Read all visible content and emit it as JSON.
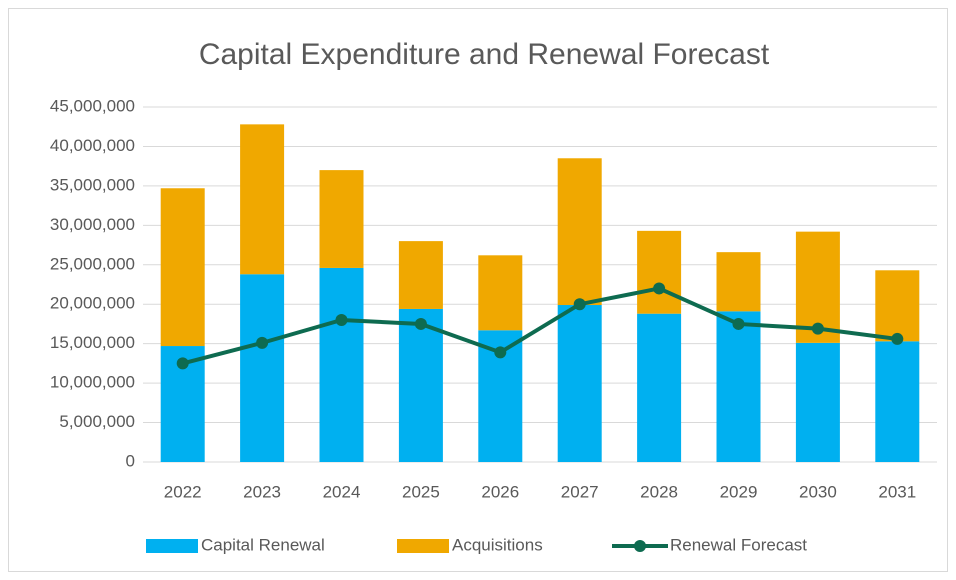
{
  "chart_data": {
    "type": "bar",
    "title": "Capital Expenditure and Renewal Forecast",
    "categories": [
      "2022",
      "2023",
      "2024",
      "2025",
      "2026",
      "2027",
      "2028",
      "2029",
      "2030",
      "2031"
    ],
    "stacked": true,
    "series": [
      {
        "name": "Capital Renewal",
        "type": "bar",
        "color": "#00b0f0",
        "values": [
          14700000,
          23800000,
          24600000,
          19400000,
          16700000,
          19900000,
          18800000,
          19100000,
          15100000,
          15300000
        ]
      },
      {
        "name": "Acquisitions",
        "type": "bar",
        "color": "#f0a800",
        "values": [
          20000000,
          19000000,
          12400000,
          8600000,
          9500000,
          18600000,
          10500000,
          7500000,
          14100000,
          9000000
        ]
      },
      {
        "name": "Renewal Forecast",
        "type": "line",
        "color": "#0e6b50",
        "values": [
          12500000,
          15100000,
          18000000,
          17500000,
          13900000,
          20000000,
          22000000,
          17500000,
          16900000,
          15600000
        ]
      }
    ],
    "ylim": [
      0,
      45000000
    ],
    "yticks": [
      0,
      {
        "value": 5000000,
        "label": "5,000,000"
      },
      {
        "value": 10000000,
        "label": "10,000,000"
      },
      {
        "value": 15000000,
        "label": "15,000,000"
      },
      {
        "value": 20000000,
        "label": "20,000,000"
      },
      {
        "value": 25000000,
        "label": "25,000,000"
      },
      {
        "value": 30000000,
        "label": "30,000,000"
      },
      {
        "value": 35000000,
        "label": "35,000,000"
      },
      {
        "value": 40000000,
        "label": "40,000,000"
      },
      {
        "value": 45000000,
        "label": "45,000,000"
      }
    ],
    "grid": true,
    "legend": "bottom"
  }
}
